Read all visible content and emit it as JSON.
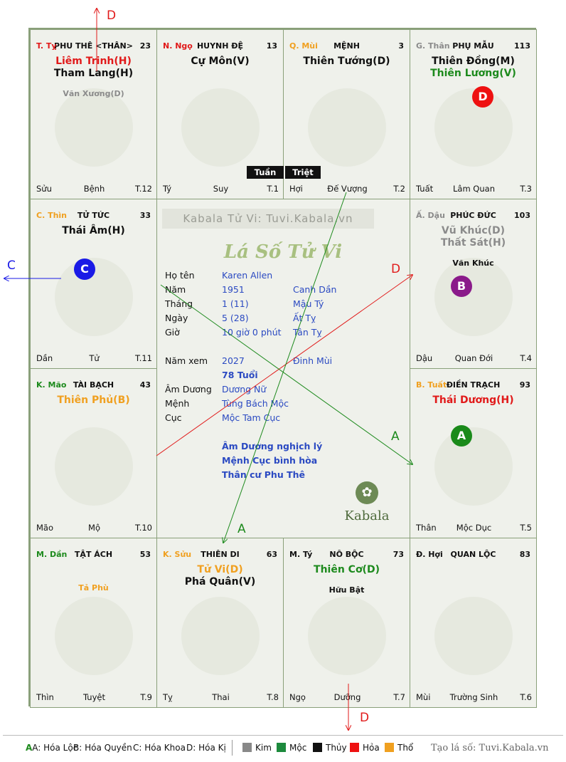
{
  "palaces": [
    {
      "id": "ty",
      "col": 0,
      "row": 0,
      "can": "T. Tỵ",
      "can_color": "red",
      "name": "PHU THÊ <THÂN>",
      "age": "23",
      "stars": [
        {
          "t": "Liêm Trinh(H)",
          "c": "red",
          "k": "main"
        },
        {
          "t": "Tham Lang(H)",
          "c": "black",
          "k": "main"
        },
        {
          "t": "Văn Xương(D)",
          "c": "gray",
          "k": "minor"
        }
      ],
      "foot": {
        "l": "Sửu",
        "c": "Bệnh",
        "r": "T.12"
      }
    },
    {
      "id": "ngo",
      "col": 1,
      "row": 0,
      "can": "N. Ngọ",
      "can_color": "red",
      "name": "HUYNH ĐỆ",
      "age": "13",
      "stars": [
        {
          "t": "Cự Môn(V)",
          "c": "black",
          "k": "main"
        }
      ],
      "foot": {
        "l": "Tý",
        "c": "Suy",
        "r": "T.1"
      }
    },
    {
      "id": "mui",
      "col": 2,
      "row": 0,
      "can": "Q. Mùi",
      "can_color": "orange",
      "name": "MỆNH",
      "age": "3",
      "stars": [
        {
          "t": "Thiên Tướng(D)",
          "c": "black",
          "k": "main"
        }
      ],
      "foot": {
        "l": "Hợi",
        "c": "Đế Vượng",
        "r": "T.2"
      }
    },
    {
      "id": "than",
      "col": 3,
      "row": 0,
      "can": "G. Thân",
      "can_color": "gray",
      "name": "PHỤ MẪU",
      "age": "113",
      "stars": [
        {
          "t": "Thiên Đồng(M)",
          "c": "black",
          "k": "main"
        },
        {
          "t": "Thiên Lương(V)",
          "c": "green",
          "k": "main"
        }
      ],
      "foot": {
        "l": "Tuất",
        "c": "Lâm Quan",
        "r": "T.3"
      }
    },
    {
      "id": "thin",
      "col": 0,
      "row": 1,
      "can": "C. Thìn",
      "can_color": "orange",
      "name": "TỬ TỨC",
      "age": "33",
      "stars": [
        {
          "t": "Thái Âm(H)",
          "c": "black",
          "k": "main"
        }
      ],
      "foot": {
        "l": "Dần",
        "c": "Tử",
        "r": "T.11"
      }
    },
    {
      "id": "dau",
      "col": 3,
      "row": 1,
      "can": "Ấ. Dậu",
      "can_color": "gray",
      "name": "PHÚC ĐỨC",
      "age": "103",
      "stars": [
        {
          "t": "Vũ Khúc(D)",
          "c": "gray",
          "k": "main"
        },
        {
          "t": "Thất Sát(H)",
          "c": "gray",
          "k": "main"
        },
        {
          "t": "Văn Khúc",
          "c": "black",
          "k": "minor"
        }
      ],
      "foot": {
        "l": "Dậu",
        "c": "Quan Đới",
        "r": "T.4"
      }
    },
    {
      "id": "mao",
      "col": 0,
      "row": 2,
      "can": "K. Mão",
      "can_color": "green",
      "name": "TÀI BẠCH",
      "age": "43",
      "stars": [
        {
          "t": "Thiên Phủ(B)",
          "c": "orange",
          "k": "main"
        }
      ],
      "foot": {
        "l": "Mão",
        "c": "Mộ",
        "r": "T.10"
      }
    },
    {
      "id": "tuat",
      "col": 3,
      "row": 2,
      "can": "B. Tuất",
      "can_color": "orange",
      "name": "ĐIỀN TRẠCH",
      "age": "93",
      "stars": [
        {
          "t": "Thái Dương(H)",
          "c": "red",
          "k": "main"
        }
      ],
      "foot": {
        "l": "Thân",
        "c": "Mộc Dục",
        "r": "T.5"
      }
    },
    {
      "id": "dan",
      "col": 0,
      "row": 3,
      "can": "M. Dần",
      "can_color": "green",
      "name": "TẬT ÁCH",
      "age": "53",
      "stars": [
        {
          "t": "Tả Phù",
          "c": "orange",
          "k": "minor",
          "gap": true
        }
      ],
      "foot": {
        "l": "Thìn",
        "c": "Tuyệt",
        "r": "T.9"
      }
    },
    {
      "id": "suu",
      "col": 1,
      "row": 3,
      "can": "K. Sửu",
      "can_color": "orange",
      "name": "THIÊN DI",
      "age": "63",
      "stars": [
        {
          "t": "Tử Vi(D)",
          "c": "orange",
          "k": "main"
        },
        {
          "t": "Phá Quân(V)",
          "c": "black",
          "k": "main"
        }
      ],
      "foot": {
        "l": "Tỵ",
        "c": "Thai",
        "r": "T.8"
      }
    },
    {
      "id": "tyx",
      "col": 2,
      "row": 3,
      "can": "M. Tý",
      "can_color": "black",
      "name": "NÔ BỘC",
      "age": "73",
      "stars": [
        {
          "t": "Thiên Cơ(D)",
          "c": "green",
          "k": "main"
        },
        {
          "t": "Hữu Bật",
          "c": "black",
          "k": "minor"
        }
      ],
      "foot": {
        "l": "Ngọ",
        "c": "Dưỡng",
        "r": "T.7"
      }
    },
    {
      "id": "hoi",
      "col": 3,
      "row": 3,
      "can": "Đ. Hợi",
      "can_color": "black",
      "name": "QUAN LỘC",
      "age": "83",
      "stars": [],
      "foot": {
        "l": "Mùi",
        "c": "Trường Sinh",
        "r": "T.6"
      }
    }
  ],
  "badges": [
    {
      "palace": "than",
      "text": "D",
      "color": "#ee1111"
    },
    {
      "palace": "thin",
      "text": "C",
      "color": "#1a1ae6"
    },
    {
      "palace": "dau",
      "text": "B",
      "color": "#8a1a8a"
    },
    {
      "palace": "tuat",
      "text": "A",
      "color": "#1a8a1a"
    }
  ],
  "center": {
    "brand": "Kabala Tử Vi: Tuvi.Kabala.vn",
    "title": "Lá Số Tử Vi",
    "rows": [
      {
        "label": "Họ tên",
        "v1": "Karen Allen",
        "v2": ""
      },
      {
        "label": "Năm",
        "v1": "1951",
        "v2": "Canh Dần"
      },
      {
        "label": "Tháng",
        "v1": "1 (11)",
        "v2": "Mậu Tý"
      },
      {
        "label": "Ngày",
        "v1": "5 (28)",
        "v2": "Ất Tỵ"
      },
      {
        "label": "Giờ",
        "v1": "10 giờ 0 phút",
        "v2": "Tân Tỵ"
      }
    ],
    "nam_xem": {
      "label": "Năm xem",
      "v1": "2027",
      "v2": "Đinh Mùi"
    },
    "tuoi": "78 Tuổi",
    "rows2": [
      {
        "label": "Âm Dương",
        "v1": "Dương Nữ"
      },
      {
        "label": "Mệnh",
        "v1": "Tùng Bách Mộc"
      },
      {
        "label": "Cục",
        "v1": "Mộc Tam Cục"
      }
    ],
    "notes": [
      "Âm Dương nghịch lý",
      "Mệnh Cục bình hòa",
      "Thân cư Phu Thê"
    ],
    "logo": "Kabala"
  },
  "tuan": "Tuần",
  "triet": "Triệt",
  "arrow_labels": {
    "d_top": "D",
    "d_mid": "D",
    "d_bottom": "D",
    "c_left": "C",
    "a_right": "A",
    "a_bottom": "A"
  },
  "legend": {
    "a": "A: Hóa Lộc",
    "b": "B: Hóa Quyền",
    "c": "C: Hóa Khoa",
    "d": "D: Hóa Kị",
    "kim": "Kim",
    "moc": "Mộc",
    "thuy": "Thủy",
    "hoa": "Hỏa",
    "tho": "Thổ",
    "colors": {
      "kim": "#888888",
      "moc": "#1d8a3d",
      "thuy": "#111111",
      "hoa": "#ee1111",
      "tho": "#f0a020"
    },
    "site": "Tạo lá số: Tuvi.Kabala.vn"
  },
  "colors": {
    "red": "#e11a1a",
    "green": "#1d8a1d",
    "orange": "#f0a020",
    "gray": "#8b8b8b",
    "black": "#111111",
    "blue": "#2b4ac2"
  }
}
